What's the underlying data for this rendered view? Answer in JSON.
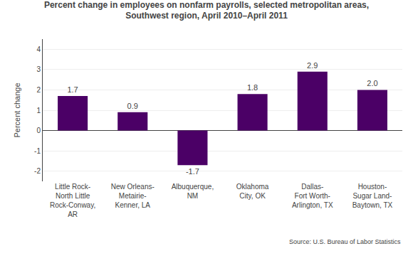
{
  "chart_data": {
    "type": "bar",
    "title": "Percent change in employees on nonfarm payrolls, selected metropolitan areas,\nSouthwest region, April 2010–April 2011",
    "categories": [
      "Little Rock-\nNorth Little\nRock-Conway,\nAR",
      "New Orleans-\nMetairie-\nKenner, LA",
      "Albuquerque,\nNM",
      "Oklahoma\nCity, OK",
      "Dallas-\nFort Worth-\nArlington, TX",
      "Houston-\nSugar Land-\nBaytown, TX"
    ],
    "values": [
      1.7,
      0.9,
      -1.7,
      1.8,
      2.9,
      2.0
    ],
    "value_labels": [
      "1.7",
      "0.9",
      "-1.7",
      "1.8",
      "2.9",
      "2.0"
    ],
    "data_labels": true,
    "color": "#4B0066",
    "ylabel": "Percent change",
    "ylim": [
      -2.5,
      4.5
    ],
    "yticks": [
      -2,
      -1,
      0,
      1,
      2,
      3,
      4
    ],
    "grid": true,
    "source": "Source: U.S. Bureau of Labor Statistics"
  }
}
